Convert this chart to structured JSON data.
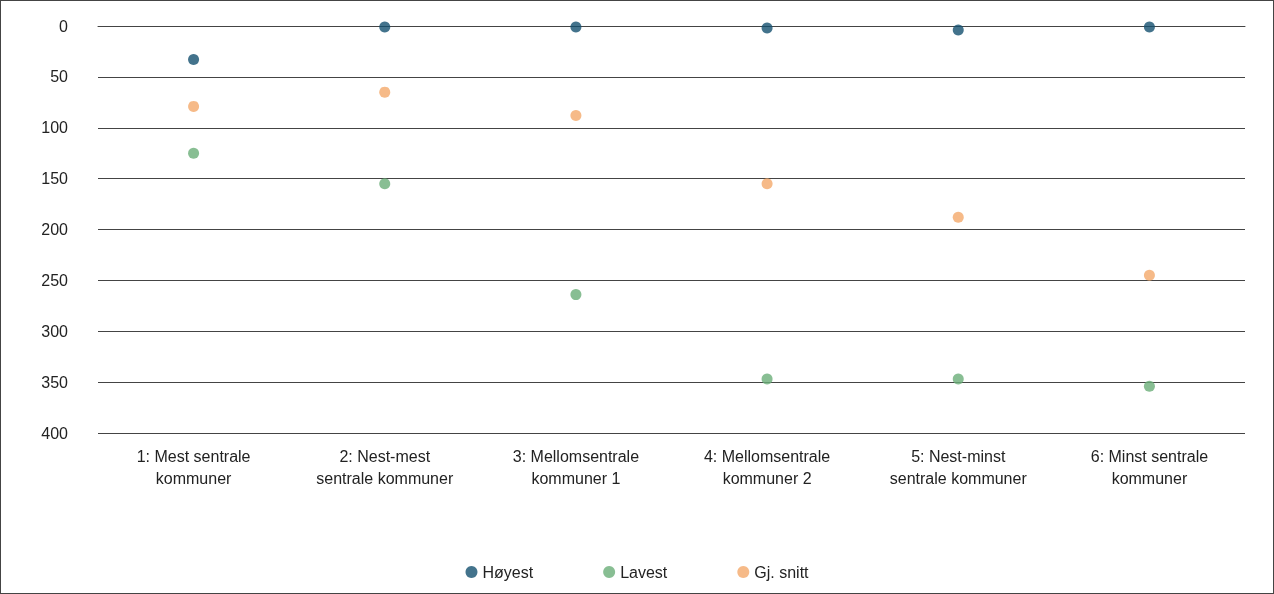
{
  "chart_data": {
    "type": "scatter",
    "categories": [
      "1: Mest sentrale kommuner",
      "2: Nest-mest sentrale kommuner",
      "3: Mellomsentrale kommuner 1",
      "4: Mellomsentrale kommuner 2",
      "5: Nest-minst sentrale kommuner",
      "6: Minst sentrale kommuner"
    ],
    "series": [
      {
        "name": "Høyest",
        "color": "#14506f",
        "values": [
          33,
          1,
          1,
          2,
          4,
          1
        ]
      },
      {
        "name": "Lavest",
        "color": "#6aae78",
        "values": [
          125,
          155,
          264,
          347,
          347,
          354
        ]
      },
      {
        "name": "Gj. snitt",
        "color": "#f4a96a",
        "values": [
          79,
          65,
          88,
          155,
          188,
          245
        ]
      }
    ],
    "ylim": [
      400,
      0
    ],
    "yticks": [
      0,
      50,
      100,
      150,
      200,
      250,
      300,
      350,
      400
    ],
    "grid": "y",
    "legend": "bottom",
    "marker": "circle"
  }
}
